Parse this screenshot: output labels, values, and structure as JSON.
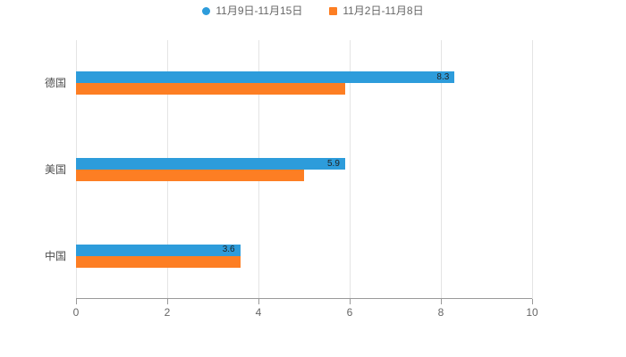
{
  "page": {
    "background": "#ffffff"
  },
  "legend": {
    "items": [
      {
        "label": "11月9日-11月15日",
        "color": "#2D9CDB",
        "marker": "circle"
      },
      {
        "label": "11月2日-11月8日",
        "color": "#FD7E23",
        "marker": "square"
      }
    ]
  },
  "chart_data": {
    "type": "bar",
    "orientation": "horizontal",
    "title": "",
    "xlabel": "",
    "ylabel": "",
    "categories": [
      "德国",
      "美国",
      "中国"
    ],
    "series": [
      {
        "name": "11月9日-11月15日",
        "color": "#2D9CDB",
        "values": [
          8.3,
          5.9,
          3.6
        ]
      },
      {
        "name": "11月2日-11月8日",
        "color": "#FD7E23",
        "values": [
          5.9,
          5.0,
          3.6
        ]
      }
    ],
    "value_labels": [
      "8.3",
      "5.9",
      "3.6"
    ],
    "x_ticks": [
      0,
      2,
      4,
      6,
      8,
      10
    ],
    "xlim": [
      0,
      10
    ],
    "grid": true,
    "legend_position": "top",
    "axis_color": "#999999",
    "grid_color": "#e4e4e4",
    "tick_label_color": "#666666"
  }
}
